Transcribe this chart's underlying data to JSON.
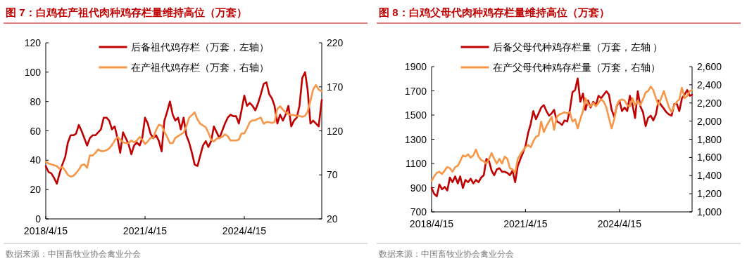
{
  "chart_data": [
    {
      "type": "line",
      "title": "图 7：白鸡在产祖代肉种鸡存栏量维持高位（万套）",
      "legend": "top",
      "annotations": [
        "数据来源：中国畜牧业协会禽业分会"
      ],
      "xlim": [
        "2018-04-15",
        "2026-08-18"
      ],
      "xticks": [
        {
          "value": "2018-04-15",
          "label": "2018/4/15"
        },
        {
          "value": "2021-04-15",
          "label": "2021/4/15"
        },
        {
          "value": "2024-04-15",
          "label": "2024/4/15"
        }
      ],
      "ylim": [
        0,
        120
      ],
      "yticks": [
        0,
        20,
        40,
        60,
        80,
        100,
        120
      ],
      "y2lim": [
        20,
        220
      ],
      "y2ticks": [
        20,
        70,
        120,
        170,
        220
      ],
      "x": [
        "2018-04-15",
        "2018-05-15",
        "2018-06-15",
        "2018-07-15",
        "2018-08-15",
        "2018-09-15",
        "2018-10-15",
        "2018-11-15",
        "2018-12-15",
        "2019-01-15",
        "2019-02-15",
        "2019-03-15",
        "2019-04-15",
        "2019-05-15",
        "2019-06-15",
        "2019-07-15",
        "2019-08-15",
        "2019-09-15",
        "2019-10-15",
        "2019-11-15",
        "2019-12-15",
        "2020-01-15",
        "2020-02-15",
        "2020-03-15",
        "2020-04-15",
        "2020-05-15",
        "2020-06-15",
        "2020-07-15",
        "2020-08-15",
        "2020-09-15",
        "2020-10-15",
        "2020-11-15",
        "2020-12-15",
        "2021-01-15",
        "2021-02-15",
        "2021-03-15",
        "2021-04-15",
        "2021-05-15",
        "2021-06-15",
        "2021-07-15",
        "2021-08-15",
        "2021-09-15",
        "2021-10-15",
        "2021-11-15",
        "2021-12-15",
        "2022-01-15",
        "2022-02-15",
        "2022-03-15",
        "2022-04-15",
        "2022-05-15",
        "2022-06-15",
        "2022-07-15",
        "2022-08-15",
        "2022-09-15",
        "2022-10-15",
        "2022-11-15",
        "2022-12-15",
        "2023-01-15",
        "2023-02-15",
        "2023-03-15",
        "2023-04-15",
        "2023-05-15",
        "2023-06-15",
        "2023-07-15",
        "2023-08-15",
        "2023-09-15",
        "2023-10-15",
        "2023-11-15",
        "2023-12-15",
        "2024-01-15",
        "2024-02-15",
        "2024-03-15",
        "2024-04-15",
        "2024-05-15",
        "2024-06-15",
        "2024-07-15",
        "2024-08-15",
        "2024-09-15",
        "2024-10-15",
        "2024-11-15",
        "2024-12-15",
        "2025-01-15",
        "2025-02-15",
        "2025-03-15",
        "2025-04-15",
        "2025-05-15",
        "2025-06-15",
        "2025-07-15",
        "2025-08-15",
        "2025-09-15",
        "2025-10-15",
        "2025-11-15",
        "2025-12-15",
        "2026-01-15",
        "2026-02-15",
        "2026-03-15",
        "2026-04-15",
        "2026-05-15",
        "2026-06-15",
        "2026-07-15",
        "2026-08-18"
      ],
      "series": [
        {
          "name": "后备祖代鸡存栏（万套，左轴）",
          "color": "#c00000",
          "axis": "y",
          "values": [
            36,
            32,
            31,
            28,
            24,
            31,
            37,
            42,
            52,
            57,
            57,
            58,
            64,
            60,
            55,
            50,
            55,
            57,
            57,
            59,
            61,
            69,
            69,
            67,
            61,
            63,
            55,
            45,
            59,
            55,
            51,
            44,
            50,
            52,
            50,
            55,
            69,
            65,
            58,
            55,
            57,
            53,
            46,
            67,
            73,
            80,
            71,
            67,
            69,
            61,
            69,
            57,
            52,
            45,
            37,
            36,
            43,
            50,
            53,
            49,
            53,
            63,
            59,
            55,
            60,
            65,
            69,
            71,
            70,
            70,
            65,
            74,
            84,
            77,
            79,
            77,
            74,
            79,
            85,
            92,
            93,
            85,
            82,
            77,
            65,
            71,
            67,
            71,
            77,
            63,
            67,
            69,
            77,
            96,
            100,
            88,
            65,
            67,
            65,
            63,
            81
          ]
        },
        {
          "name": "在产祖代鸡存栏（万套，右轴）",
          "color": "#f79646",
          "axis": "y2",
          "values": [
            85,
            83,
            82,
            81,
            80,
            77,
            79,
            75,
            70,
            68,
            69,
            72,
            76,
            81,
            82,
            78,
            92,
            92,
            95,
            99,
            97,
            97,
            98,
            100,
            104,
            109,
            113,
            110,
            107,
            106,
            106,
            109,
            107,
            109,
            113,
            110,
            105,
            108,
            112,
            112,
            121,
            127,
            126,
            119,
            113,
            106,
            106,
            112,
            114,
            116,
            118,
            125,
            135,
            138,
            141,
            133,
            128,
            126,
            124,
            118,
            110,
            108,
            111,
            112,
            113,
            116,
            114,
            109,
            109,
            109,
            110,
            117,
            117,
            123,
            130,
            132,
            132,
            134,
            135,
            128,
            130,
            130,
            129,
            130,
            145,
            148,
            144,
            141,
            139,
            138,
            138,
            137,
            137,
            136,
            137,
            142,
            154,
            167,
            172,
            167,
            165
          ]
        }
      ]
    },
    {
      "type": "line",
      "title": "图 8：白鸡父母代肉种鸡存栏量维持高位（万套）",
      "legend": "top",
      "annotations": [
        "数据来源：中国畜牧业协会禽业分会"
      ],
      "xlim": [
        "2018-04-15",
        "2026-08-11"
      ],
      "xticks": [
        {
          "value": "2018-04-15",
          "label": "2018/4/15"
        },
        {
          "value": "2021-04-15",
          "label": "2021/4/15"
        },
        {
          "value": "2024-04-15",
          "label": "2024/4/15"
        }
      ],
      "ylim": [
        700,
        1900
      ],
      "yticks": [
        700,
        900,
        1100,
        1300,
        1500,
        1700,
        1900
      ],
      "y2lim": [
        1000,
        2600
      ],
      "y2ticks": [
        {
          "value": 1000,
          "label": "1,000"
        },
        {
          "value": 1200,
          "label": "1,200"
        },
        {
          "value": 1400,
          "label": "1,400"
        },
        {
          "value": 1600,
          "label": "1,600"
        },
        {
          "value": 1800,
          "label": "1,800"
        },
        {
          "value": 2000,
          "label": "2,000"
        },
        {
          "value": 2200,
          "label": "2,200"
        },
        {
          "value": 2400,
          "label": "2,400"
        },
        {
          "value": 2600,
          "label": "2,600"
        }
      ],
      "x": [
        "2018-04-15",
        "2018-05-15",
        "2018-06-15",
        "2018-07-15",
        "2018-08-15",
        "2018-09-15",
        "2018-10-15",
        "2018-11-15",
        "2018-12-15",
        "2019-01-15",
        "2019-02-15",
        "2019-03-15",
        "2019-04-15",
        "2019-05-15",
        "2019-06-15",
        "2019-07-15",
        "2019-08-15",
        "2019-09-15",
        "2019-10-15",
        "2019-11-15",
        "2019-12-15",
        "2020-01-15",
        "2020-02-15",
        "2020-03-15",
        "2020-04-15",
        "2020-05-15",
        "2020-06-15",
        "2020-07-15",
        "2020-08-15",
        "2020-09-15",
        "2020-10-15",
        "2020-11-15",
        "2020-12-15",
        "2021-01-15",
        "2021-02-15",
        "2021-03-15",
        "2021-04-15",
        "2021-05-15",
        "2021-06-15",
        "2021-07-15",
        "2021-08-15",
        "2021-09-15",
        "2021-10-15",
        "2021-11-15",
        "2021-12-15",
        "2022-01-15",
        "2022-02-15",
        "2022-03-15",
        "2022-04-15",
        "2022-05-15",
        "2022-06-15",
        "2022-07-15",
        "2022-08-15",
        "2022-09-15",
        "2022-10-15",
        "2022-11-15",
        "2022-12-15",
        "2023-01-15",
        "2023-02-15",
        "2023-03-15",
        "2023-04-15",
        "2023-05-15",
        "2023-06-15",
        "2023-07-15",
        "2023-08-15",
        "2023-09-15",
        "2023-10-15",
        "2023-11-15",
        "2023-12-15",
        "2024-01-15",
        "2024-02-15",
        "2024-03-15",
        "2024-04-15",
        "2024-05-15",
        "2024-06-15",
        "2024-07-15",
        "2024-08-15",
        "2024-09-15",
        "2024-10-15",
        "2024-11-15",
        "2024-12-15",
        "2025-01-15",
        "2025-02-15",
        "2025-03-15",
        "2025-04-15",
        "2025-05-15",
        "2025-06-15",
        "2025-07-15",
        "2025-08-15",
        "2025-09-15",
        "2025-10-15",
        "2025-11-15",
        "2025-12-15",
        "2026-01-15",
        "2026-02-15",
        "2026-03-15",
        "2026-04-15",
        "2026-05-15",
        "2026-06-15",
        "2026-07-15",
        "2026-08-11"
      ],
      "series": [
        {
          "name": "后备父母代种鸡存栏量（万套，左轴 ）",
          "color": "#c00000",
          "axis": "y",
          "values": [
            897,
            849,
            829,
            926,
            887,
            906,
            877,
            984,
            945,
            993,
            935,
            993,
            897,
            964,
            945,
            974,
            935,
            964,
            945,
            984,
            1003,
            1138,
            1119,
            1041,
            1003,
            1051,
            1061,
            1032,
            1032,
            1022,
            1003,
            1041,
            945,
            1080,
            1138,
            1186,
            1244,
            1350,
            1427,
            1533,
            1466,
            1514,
            1562,
            1582,
            1533,
            1495,
            1514,
            1543,
            1447,
            1437,
            1418,
            1456,
            1447,
            1543,
            1688,
            1707,
            1803,
            1610,
            1678,
            1543,
            1620,
            1562,
            1610,
            1582,
            1659,
            1639,
            1668,
            1697,
            1668,
            1543,
            1485,
            1572,
            1620,
            1533,
            1562,
            1533,
            1659,
            1582,
            1476,
            1697,
            1572,
            1524,
            1408,
            1476,
            1495,
            1456,
            1504,
            1620,
            1582,
            1553,
            1524,
            1504,
            1495,
            1591,
            1591,
            1533,
            1639,
            1668,
            1707,
            1659,
            1668
          ]
        },
        {
          "name": "在产父母代种鸡存栏量（万套，右轴）",
          "color": "#f79646",
          "axis": "y2",
          "values": [
            1340,
            1391,
            1430,
            1442,
            1417,
            1455,
            1494,
            1481,
            1442,
            1494,
            1507,
            1558,
            1622,
            1609,
            1635,
            1597,
            1622,
            1687,
            1609,
            1571,
            1558,
            1532,
            1584,
            1648,
            1584,
            1532,
            1584,
            1532,
            1609,
            1584,
            1481,
            1468,
            1430,
            1584,
            1635,
            1674,
            1712,
            1738,
            1712,
            1777,
            1828,
            1841,
            1995,
            1880,
            1944,
            1995,
            2047,
            1905,
            2047,
            2073,
            2085,
            2098,
            2085,
            2098,
            1995,
            2021,
            1918,
            2021,
            2111,
            2253,
            2188,
            2163,
            2201,
            2163,
            2201,
            2240,
            2214,
            2150,
            2034,
            1918,
            2021,
            2175,
            2227,
            2240,
            2227,
            2175,
            2163,
            2253,
            2175,
            2227,
            2175,
            2240,
            2317,
            2330,
            2381,
            2343,
            2253,
            2175,
            2253,
            2330,
            2240,
            2150,
            2098,
            2175,
            2214,
            2240,
            2368,
            2253,
            2278,
            2330,
            2343
          ]
        }
      ]
    }
  ]
}
